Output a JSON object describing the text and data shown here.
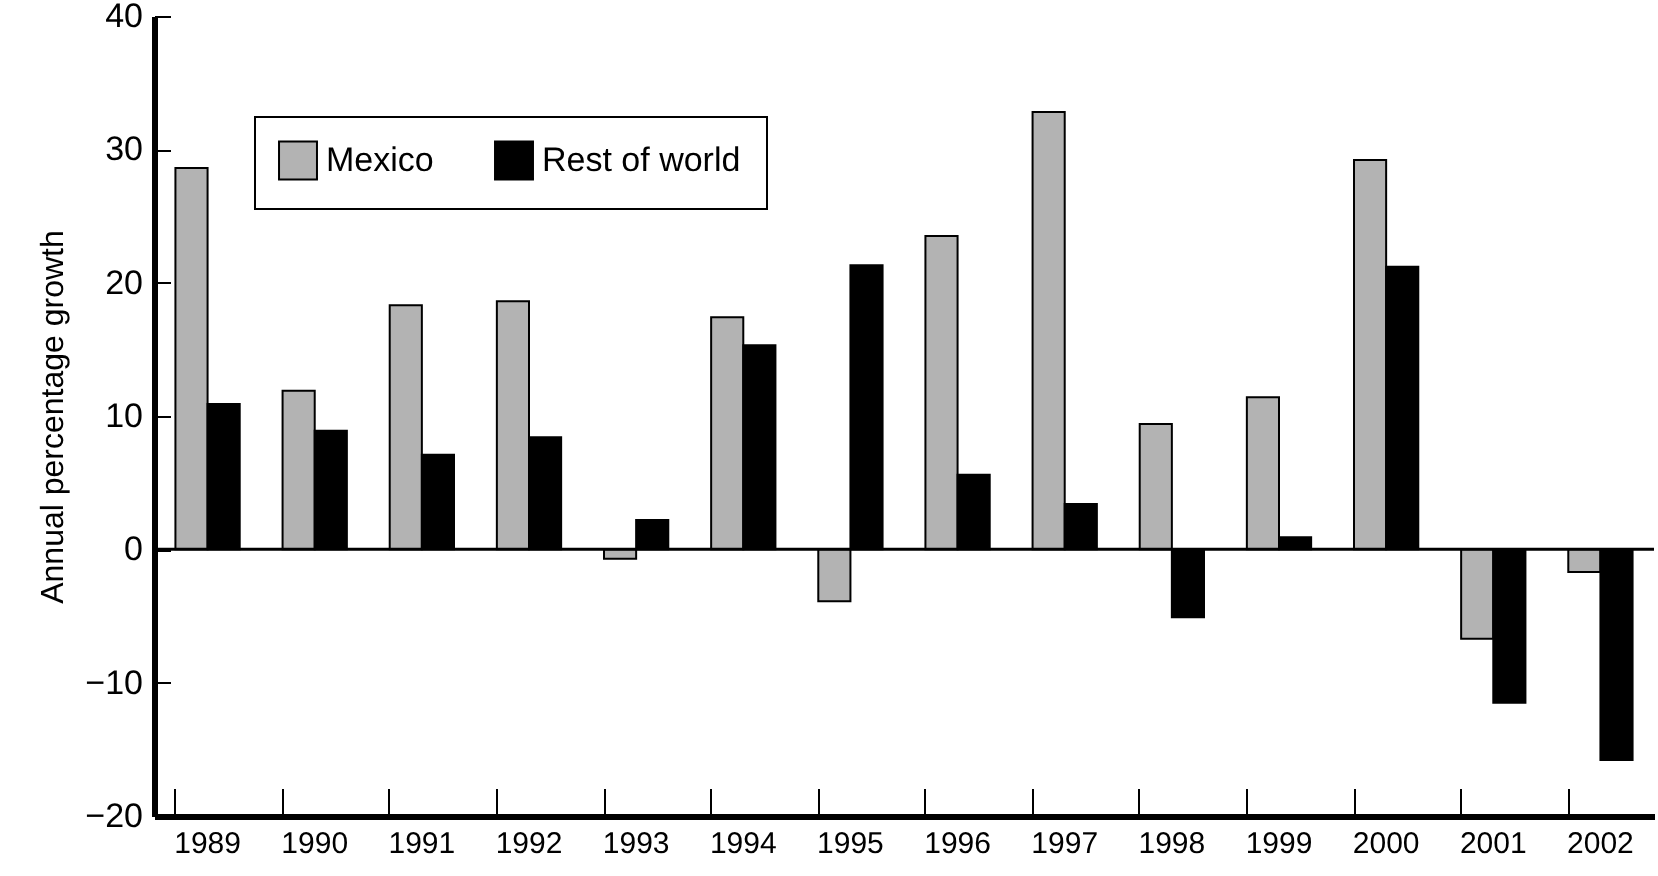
{
  "chart_data": {
    "type": "bar",
    "ylabel": "Annual percentage growth",
    "categories": [
      "1989",
      "1990",
      "1991",
      "1992",
      "1993",
      "1994",
      "1995",
      "1996",
      "1997",
      "1998",
      "1999",
      "2000",
      "2001",
      "2002"
    ],
    "series": [
      {
        "name": "Mexico",
        "color": "#b3b3b3",
        "values": [
          28.6,
          11.9,
          18.3,
          18.6,
          -0.7,
          17.4,
          -3.9,
          23.5,
          32.8,
          9.4,
          11.4,
          29.2,
          -6.7,
          -1.7
        ]
      },
      {
        "name": "Rest of world",
        "color": "#000000",
        "values": [
          10.9,
          8.9,
          7.1,
          8.4,
          2.2,
          15.3,
          21.3,
          5.6,
          3.4,
          -5.1,
          0.9,
          21.2,
          -11.5,
          -15.8
        ]
      }
    ],
    "ylim": [
      -20,
      40
    ],
    "yticks": [
      {
        "value": -20,
        "label": "−20"
      },
      {
        "value": -10,
        "label": "−10"
      },
      0,
      10,
      20,
      30,
      40
    ],
    "ref_lines": [
      {
        "axis": "y",
        "value": 0
      }
    ],
    "grid": false,
    "legend": "top left"
  }
}
